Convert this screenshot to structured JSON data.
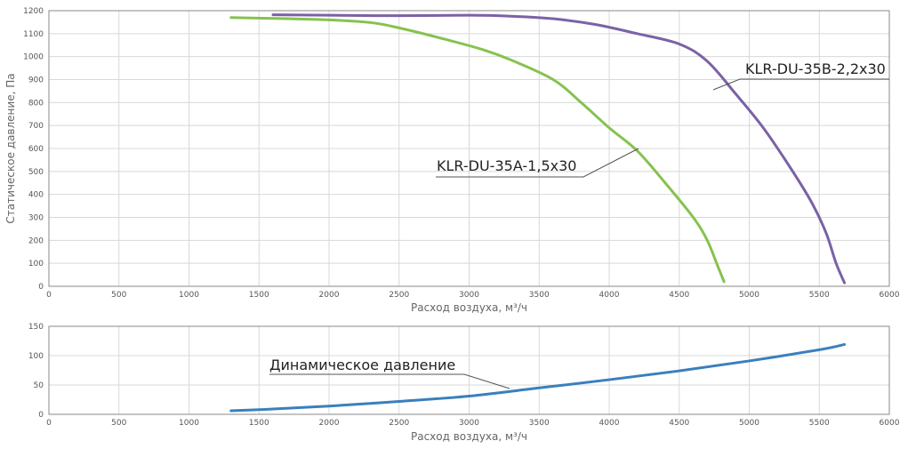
{
  "chart_data": [
    {
      "type": "line",
      "title": "",
      "xlabel": "Расход воздуха, м³/ч",
      "ylabel": "Статическое давление, Па",
      "xlim": [
        0,
        6000
      ],
      "ylim": [
        0,
        1200
      ],
      "grid": true,
      "x_ticks": [
        "0",
        "500",
        "1000",
        "1500",
        "2000",
        "2500",
        "3000",
        "3500",
        "4000",
        "4500",
        "5000",
        "5500",
        "6000"
      ],
      "y_ticks": [
        "0",
        "100",
        "200",
        "300",
        "400",
        "500",
        "600",
        "700",
        "800",
        "900",
        "1000",
        "1100",
        "1200"
      ],
      "series": [
        {
          "name": "KLR-DU-35B-2,2x30",
          "color": "#7a62a6",
          "points": [
            [
              1600,
              1182
            ],
            [
              2000,
              1180
            ],
            [
              2500,
              1178
            ],
            [
              3000,
              1180
            ],
            [
              3300,
              1176
            ],
            [
              3600,
              1165
            ],
            [
              3900,
              1140
            ],
            [
              4200,
              1100
            ],
            [
              4500,
              1055
            ],
            [
              4700,
              980
            ],
            [
              4900,
              840
            ],
            [
              5100,
              690
            ],
            [
              5300,
              510
            ],
            [
              5450,
              360
            ],
            [
              5550,
              230
            ],
            [
              5620,
              100
            ],
            [
              5680,
              15
            ]
          ]
        },
        {
          "name": "KLR-DU-35A-1,5x30",
          "color": "#86c24f",
          "points": [
            [
              1300,
              1170
            ],
            [
              1700,
              1165
            ],
            [
              2000,
              1160
            ],
            [
              2300,
              1148
            ],
            [
              2500,
              1125
            ],
            [
              2800,
              1080
            ],
            [
              3100,
              1030
            ],
            [
              3300,
              985
            ],
            [
              3600,
              900
            ],
            [
              3800,
              800
            ],
            [
              4000,
              690
            ],
            [
              4200,
              590
            ],
            [
              4400,
              450
            ],
            [
              4600,
              300
            ],
            [
              4700,
              200
            ],
            [
              4780,
              80
            ],
            [
              4820,
              20
            ]
          ]
        }
      ],
      "annotations": [
        {
          "text": "KLR-DU-35B-2,2x30",
          "series": 0
        },
        {
          "text": "KLR-DU-35A-1,5x30",
          "series": 1
        }
      ]
    },
    {
      "type": "line",
      "title": "",
      "xlabel": "Расход воздуха, м³/ч",
      "ylabel": "",
      "xlim": [
        0,
        6000
      ],
      "ylim": [
        0,
        150
      ],
      "grid": true,
      "x_ticks": [
        "0",
        "500",
        "1000",
        "1500",
        "2000",
        "2500",
        "3000",
        "3500",
        "4000",
        "4500",
        "5000",
        "5500",
        "6000"
      ],
      "y_ticks": [
        "0",
        "50",
        "100",
        "150"
      ],
      "series": [
        {
          "name": "Динамическое давление",
          "color": "#3b7fbd",
          "points": [
            [
              1300,
              6
            ],
            [
              1600,
              9
            ],
            [
              2000,
              14
            ],
            [
              2500,
              22
            ],
            [
              3000,
              31
            ],
            [
              3500,
              45
            ],
            [
              4000,
              59
            ],
            [
              4500,
              74
            ],
            [
              5000,
              91
            ],
            [
              5500,
              110
            ],
            [
              5680,
              119
            ]
          ]
        }
      ],
      "annotations": [
        {
          "text": "Динамическое давление",
          "series": 0
        }
      ]
    }
  ]
}
